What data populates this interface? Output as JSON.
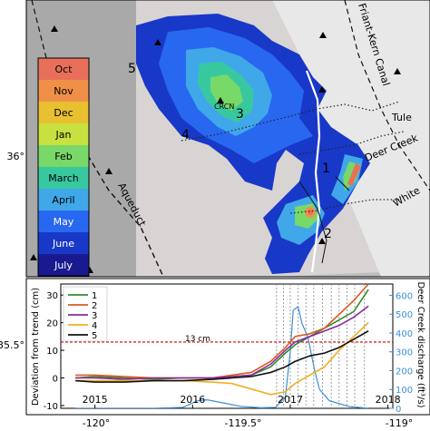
{
  "map": {
    "place_labels": {
      "canal": "Friant-Kern Canal",
      "aqueduct": "Aqueduct",
      "tule": "Tule",
      "deer_creek": "Deer Creek",
      "white": "White",
      "crcn": "CRCN"
    },
    "zone_labels": [
      "1",
      "2",
      "3",
      "4",
      "5"
    ],
    "lon_ticks": [
      "-120°",
      "-119.5°",
      "-119°"
    ],
    "lat_ticks": [
      "36°",
      "35.5°"
    ],
    "legend": {
      "months": [
        "Oct",
        "Nov",
        "Dec",
        "Jan",
        "Feb",
        "March",
        "April",
        "May",
        "June",
        "July"
      ],
      "colors": [
        "#e8705a",
        "#f09048",
        "#e8c030",
        "#c8e040",
        "#78d868",
        "#38c8a0",
        "#40a8e8",
        "#2868f0",
        "#1838c8",
        "#1a1a90"
      ]
    }
  },
  "chart_data": {
    "type": "line",
    "xlabel": "",
    "ylabel": "Deviation from trend (cm)",
    "y2label": "Deer Creek discharge (ft³/s)",
    "xticks": [
      "2015",
      "2016",
      "2017",
      "2018"
    ],
    "yticks": [
      "-10",
      "0",
      "10",
      "20",
      "30"
    ],
    "y2ticks": [
      "0",
      "100",
      "200",
      "300",
      "400",
      "500",
      "600"
    ],
    "ylim": [
      -11,
      34
    ],
    "y2lim": [
      0,
      660
    ],
    "xlim": [
      2014.65,
      2018.05
    ],
    "threshold": {
      "value": 13,
      "label": "13 cm"
    },
    "series": [
      {
        "name": "1",
        "color": "#2e8b2e",
        "x": [
          2014.8,
          2015.0,
          2015.3,
          2015.6,
          2015.9,
          2016.2,
          2016.4,
          2016.6,
          2016.8,
          2016.95,
          2017.05,
          2017.2,
          2017.35,
          2017.5,
          2017.65,
          2017.8
        ],
        "y": [
          0,
          0.5,
          0,
          -0.5,
          0,
          0,
          0.5,
          1,
          4,
          9,
          12,
          15,
          18,
          21,
          24,
          32
        ]
      },
      {
        "name": "2",
        "color": "#e05a1e",
        "x": [
          2014.8,
          2015.0,
          2015.3,
          2015.6,
          2015.9,
          2016.2,
          2016.4,
          2016.6,
          2016.8,
          2016.95,
          2017.05,
          2017.2,
          2017.35,
          2017.5,
          2017.65,
          2017.8
        ],
        "y": [
          1,
          1,
          0.5,
          0,
          0,
          0,
          1,
          2,
          6,
          11,
          15,
          16,
          18,
          23,
          28,
          34
        ]
      },
      {
        "name": "3",
        "color": "#8b2aa0",
        "x": [
          2014.8,
          2015.0,
          2015.3,
          2015.6,
          2015.9,
          2016.2,
          2016.4,
          2016.6,
          2016.8,
          2016.95,
          2017.05,
          2017.2,
          2017.35,
          2017.5,
          2017.65,
          2017.8
        ],
        "y": [
          0,
          0,
          -0.5,
          0,
          0,
          0,
          0.5,
          1,
          5,
          10,
          13,
          15,
          17,
          19,
          22,
          26
        ]
      },
      {
        "name": "4",
        "color": "#f0b020",
        "x": [
          2014.8,
          2015.0,
          2015.3,
          2015.6,
          2015.9,
          2016.2,
          2016.4,
          2016.6,
          2016.8,
          2016.95,
          2017.05,
          2017.2,
          2017.35,
          2017.5,
          2017.65,
          2017.8
        ],
        "y": [
          -1,
          -1,
          -1,
          -1,
          -1,
          -1.5,
          -2,
          -4,
          -6,
          -5,
          -2,
          1,
          4,
          10,
          15,
          20
        ]
      },
      {
        "name": "5",
        "color": "#111111",
        "x": [
          2014.8,
          2015.0,
          2015.3,
          2015.6,
          2015.9,
          2016.2,
          2016.4,
          2016.6,
          2016.8,
          2016.95,
          2017.05,
          2017.2,
          2017.35,
          2017.5,
          2017.65,
          2017.8
        ],
        "y": [
          -1,
          -1.5,
          -1.5,
          -1,
          -1,
          -0.5,
          0,
          0.5,
          2,
          4,
          6,
          8,
          9,
          11,
          14,
          17
        ]
      }
    ],
    "discharge": {
      "name": "Deer Creek discharge",
      "color": "#3a8fd8",
      "x": [
        2014.8,
        2015.2,
        2015.6,
        2015.9,
        2016.05,
        2016.15,
        2016.3,
        2016.5,
        2016.7,
        2016.85,
        2016.95,
        2017.0,
        2017.03,
        2017.08,
        2017.12,
        2017.18,
        2017.25,
        2017.3,
        2017.4,
        2017.6,
        2017.8
      ],
      "y": [
        0,
        0,
        0,
        5,
        40,
        45,
        30,
        10,
        3,
        5,
        60,
        300,
        520,
        540,
        450,
        380,
        200,
        100,
        40,
        10,
        0
      ]
    },
    "event_lines_x": [
      2016.86,
      2016.93,
      2017.0,
      2017.08,
      2017.16,
      2017.24,
      2017.33,
      2017.42,
      2017.5,
      2017.58,
      2017.66,
      2017.76
    ]
  }
}
